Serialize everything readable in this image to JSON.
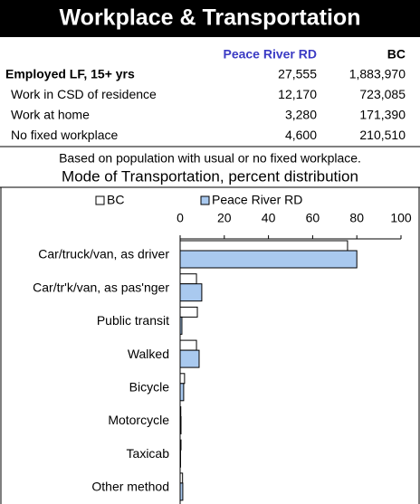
{
  "header": {
    "title": "Workplace & Transportation"
  },
  "table": {
    "columns": [
      "Peace River RD",
      "BC"
    ],
    "rows": [
      [
        "Employed LF, 15+ yrs",
        "27,555",
        "1,883,970"
      ],
      [
        "Work in CSD of residence",
        "12,170",
        "723,085"
      ],
      [
        "Work at home",
        "3,280",
        "171,390"
      ],
      [
        "No fixed workplace",
        "4,600",
        "210,510"
      ]
    ]
  },
  "note": "Based on population with usual or no fixed workplace.",
  "chart_data": {
    "type": "bar",
    "orientation": "horizontal",
    "title": "Mode of Transportation, percent distribution",
    "categories": [
      "Car/truck/van, as driver",
      "Car/tr'k/van, as pas'nger",
      "Public transit",
      "Walked",
      "Bicycle",
      "Motorcycle",
      "Taxicab",
      "Other method"
    ],
    "series": [
      {
        "name": "BC",
        "color": "#ffffff",
        "values": [
          75.8,
          7.4,
          7.8,
          7.4,
          2.0,
          0.3,
          0.4,
          1.1
        ]
      },
      {
        "name": "Peace River RD",
        "color": "#a9c9ef",
        "values": [
          80.0,
          9.8,
          0.8,
          8.6,
          1.6,
          0.4,
          0.2,
          1.2
        ]
      }
    ],
    "xlim": [
      0,
      100
    ],
    "xticks": [
      0,
      20,
      40,
      60,
      80,
      100
    ],
    "legend": "top"
  }
}
